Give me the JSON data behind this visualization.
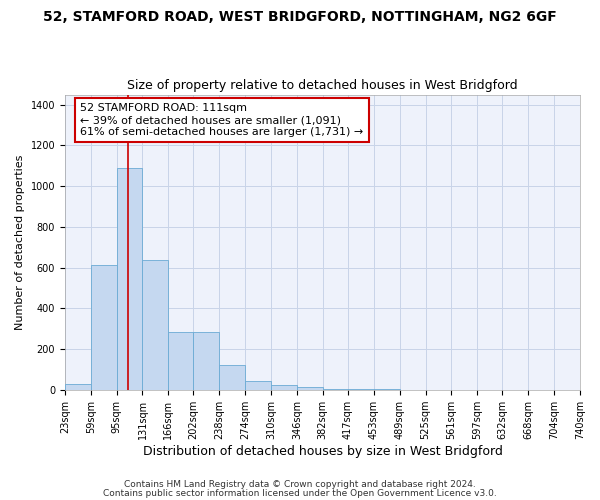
{
  "title": "52, STAMFORD ROAD, WEST BRIDGFORD, NOTTINGHAM, NG2 6GF",
  "subtitle": "Size of property relative to detached houses in West Bridgford",
  "xlabel": "Distribution of detached houses by size in West Bridgford",
  "ylabel": "Number of detached properties",
  "footer_line1": "Contains HM Land Registry data © Crown copyright and database right 2024.",
  "footer_line2": "Contains public sector information licensed under the Open Government Licence v3.0.",
  "annotation_title": "52 STAMFORD ROAD: 111sqm",
  "annotation_line1": "← 39% of detached houses are smaller (1,091)",
  "annotation_line2": "61% of semi-detached houses are larger (1,731) →",
  "property_size": 111,
  "bar_color": "#c5d8f0",
  "bar_edge_color": "#6aaad4",
  "red_line_color": "#cc0000",
  "annotation_box_color": "#cc0000",
  "bg_color": "#eef2fb",
  "grid_color": "#c8d4e8",
  "bin_edges": [
    23,
    59,
    95,
    131,
    166,
    202,
    238,
    274,
    310,
    346,
    382,
    417,
    453,
    489,
    525,
    561,
    597,
    632,
    668,
    704,
    740
  ],
  "bar_heights": [
    30,
    615,
    1090,
    635,
    285,
    285,
    120,
    45,
    25,
    15,
    5,
    3,
    2,
    1,
    1,
    1,
    0,
    0,
    0,
    1
  ],
  "ylim": [
    0,
    1450
  ],
  "yticks": [
    0,
    200,
    400,
    600,
    800,
    1000,
    1200,
    1400
  ],
  "title_fontsize": 10,
  "subtitle_fontsize": 9,
  "xlabel_fontsize": 9,
  "ylabel_fontsize": 8,
  "tick_fontsize": 7,
  "annot_fontsize": 8,
  "footer_fontsize": 6.5
}
